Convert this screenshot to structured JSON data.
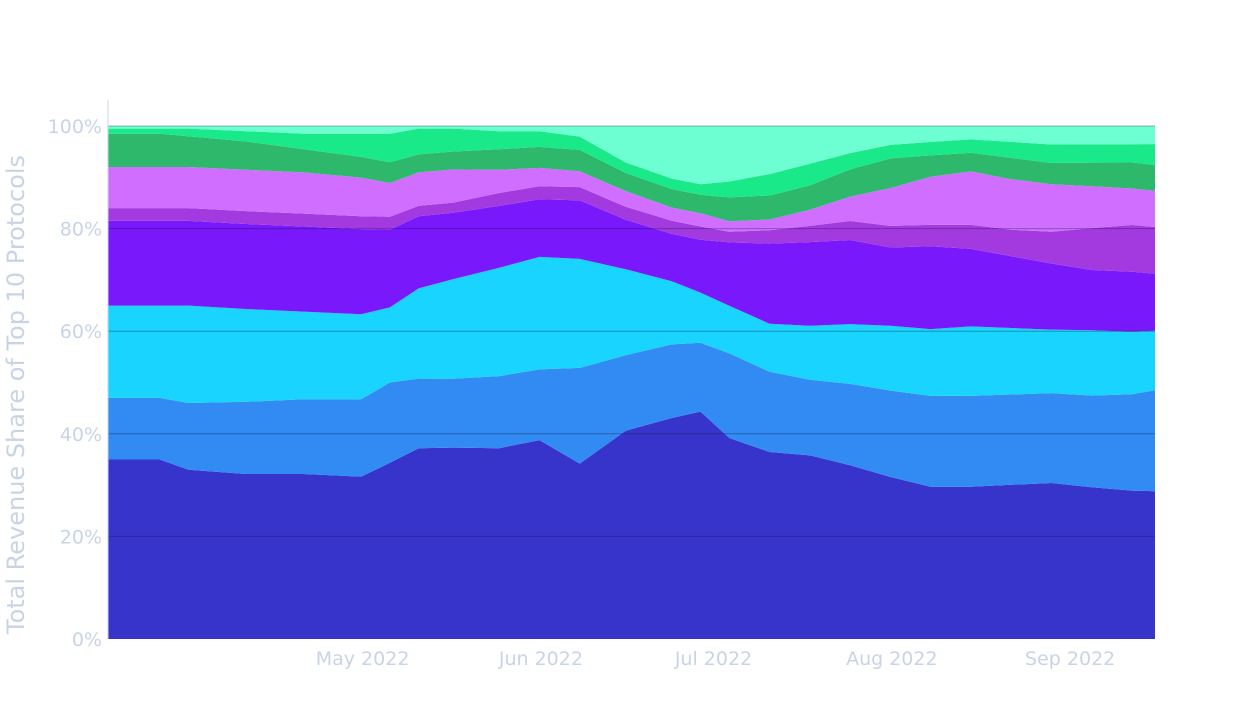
{
  "chart_data": {
    "type": "area",
    "stacking": "percent",
    "ylabel": "Total Revenue Share of Top 10 Protocols",
    "xlabel": "",
    "ylim": [
      0,
      100
    ],
    "y_ticks": [
      "0%",
      "20%",
      "40%",
      "60%",
      "80%",
      "100%"
    ],
    "y_tick_values": [
      0,
      20,
      40,
      60,
      80,
      100
    ],
    "x_range": [
      "2022-04-01",
      "2022-09-30"
    ],
    "x_ticks": [
      {
        "date": "2022-05-01",
        "label": "May 2022"
      },
      {
        "date": "2022-06-01",
        "label": "Jun 2022"
      },
      {
        "date": "2022-07-01",
        "label": "Jul 2022"
      },
      {
        "date": "2022-08-01",
        "label": "Aug 2022"
      },
      {
        "date": "2022-09-01",
        "label": "Sep 2022"
      }
    ],
    "grid": true,
    "legend": "none",
    "x": [
      "2022-04-01",
      "2022-04-10",
      "2022-04-15",
      "2022-04-25",
      "2022-05-05",
      "2022-05-15",
      "2022-05-20",
      "2022-05-25",
      "2022-05-31",
      "2022-06-08",
      "2022-06-15",
      "2022-06-22",
      "2022-06-30",
      "2022-07-08",
      "2022-07-13",
      "2022-07-18",
      "2022-07-25",
      "2022-08-01",
      "2022-08-08",
      "2022-08-15",
      "2022-08-22",
      "2022-08-29",
      "2022-09-05",
      "2022-09-12",
      "2022-09-19",
      "2022-09-26",
      "2022-09-30"
    ],
    "series": [
      {
        "color": "#3734cc",
        "values": [
          35,
          35,
          33,
          32,
          32,
          31.5,
          34,
          37,
          37.5,
          37,
          38,
          33,
          40,
          42,
          43,
          38,
          35,
          34,
          32,
          30,
          28.5,
          28.5,
          29,
          29.5,
          29,
          28.5,
          28.5
        ]
      },
      {
        "color": "#318bf2",
        "values": [
          12,
          12,
          13,
          14,
          14.5,
          15,
          15.5,
          13.5,
          13.5,
          14,
          13.5,
          18,
          14.5,
          14,
          13,
          16,
          15,
          14,
          15,
          16,
          17,
          17,
          17,
          17,
          17.5,
          18.5,
          19.5
        ]
      },
      {
        "color": "#19d4ff",
        "values": [
          18,
          18,
          19,
          18,
          17,
          16.5,
          14.5,
          17.5,
          19.5,
          21,
          21.5,
          20.5,
          16.5,
          12,
          9.5,
          9,
          9,
          10,
          11,
          12,
          12.5,
          13,
          12.5,
          12,
          12.5,
          12,
          11.5
        ]
      },
      {
        "color": "#7a18fc",
        "values": [
          16.5,
          16.5,
          16.5,
          16.5,
          16.5,
          16.5,
          15,
          14,
          13,
          12,
          11,
          11,
          9.5,
          9,
          10,
          12,
          15,
          15.5,
          15.5,
          14.5,
          15.5,
          14.5,
          13.5,
          12.5,
          11.5,
          11.5,
          11
        ]
      },
      {
        "color": "#a33ae0",
        "values": [
          2.5,
          2.5,
          2.5,
          2.5,
          2.5,
          2.5,
          2.5,
          2,
          2,
          2.5,
          2.5,
          2.5,
          2.5,
          2.5,
          2.5,
          2,
          2.5,
          3,
          3.5,
          4,
          4,
          4.5,
          5,
          6,
          8,
          9,
          9
        ]
      },
      {
        "color": "#d06fff",
        "values": [
          8,
          8,
          8,
          8,
          8,
          7.5,
          6.5,
          6.5,
          6.5,
          4.5,
          3.5,
          3,
          3,
          2.5,
          2.5,
          2,
          2,
          3,
          4.5,
          7,
          9,
          10,
          9.5,
          9,
          8,
          7,
          7
        ]
      },
      {
        "color": "#2db86c",
        "values": [
          6.5,
          6.5,
          6,
          5.5,
          4.5,
          4,
          4,
          3.5,
          3.5,
          4,
          4,
          4,
          3.5,
          3.5,
          3.5,
          4.5,
          4.5,
          4.5,
          5,
          5.5,
          4,
          3.5,
          4,
          4,
          4.5,
          5,
          5
        ]
      },
      {
        "color": "#1ae98a",
        "values": [
          1,
          1,
          1.5,
          2,
          3,
          4.5,
          5.5,
          5,
          4.5,
          3.5,
          3,
          2.5,
          2,
          2,
          2,
          3,
          4,
          4,
          3,
          2.5,
          2.5,
          2.5,
          3,
          3.5,
          3.5,
          3.5,
          4
        ]
      },
      {
        "color": "#6dffd1",
        "values": [
          0.5,
          0.5,
          0.5,
          1,
          1.5,
          1.5,
          1.5,
          0.5,
          0.5,
          1,
          1,
          2,
          7,
          10,
          11,
          10.5,
          9,
          7,
          5,
          3.5,
          3,
          2.5,
          3,
          3.5,
          3.5,
          3.5,
          3.5
        ]
      },
      {
        "color": "#cdeee0",
        "values": [
          0,
          0,
          0,
          0,
          0,
          0,
          0,
          0,
          0,
          0,
          0,
          0,
          0,
          0,
          0,
          0,
          0,
          0,
          0,
          0,
          0,
          0,
          0,
          0,
          0,
          0,
          0
        ]
      }
    ]
  }
}
